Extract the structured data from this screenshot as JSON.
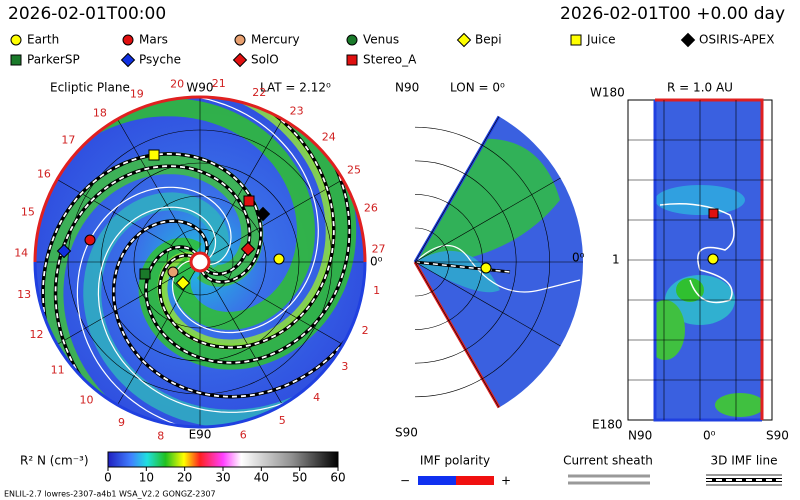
{
  "header": {
    "left_time": "2026-02-01T00:00",
    "right_time": "2026-02-01T00 +0.00 day"
  },
  "legend": [
    {
      "name": "Earth",
      "color": "#ffff00",
      "shape": "circle"
    },
    {
      "name": "Mars",
      "color": "#e01010",
      "shape": "circle"
    },
    {
      "name": "Mercury",
      "color": "#e8a070",
      "shape": "circle"
    },
    {
      "name": "Venus",
      "color": "#1a7a2a",
      "shape": "circle"
    },
    {
      "name": "Bepi",
      "color": "#ffff00",
      "shape": "diamond"
    },
    {
      "name": "Juice",
      "color": "#ffff00",
      "shape": "square"
    },
    {
      "name": "OSIRIS-APEX",
      "color": "#000000",
      "shape": "diamond"
    },
    {
      "name": "ParkerSP",
      "color": "#1a7a2a",
      "shape": "square"
    },
    {
      "name": "Psyche",
      "color": "#1030e0",
      "shape": "diamond"
    },
    {
      "name": "SolO",
      "color": "#e01010",
      "shape": "diamond"
    },
    {
      "name": "Stereo_A",
      "color": "#e01010",
      "shape": "square"
    }
  ],
  "ecliptic": {
    "title": "Ecliptic Plane",
    "lat": "LAT = 2.12⁰",
    "top": "W90",
    "bottom": "E90",
    "right": "0⁰",
    "carrington_ticks": [
      1,
      2,
      3,
      4,
      5,
      6,
      8,
      9,
      10,
      11,
      12,
      13,
      14,
      15,
      16,
      17,
      18,
      19,
      20,
      21,
      22,
      23,
      24,
      25,
      26,
      27
    ]
  },
  "meridional": {
    "top": "N90",
    "lon": "LON = 0⁰",
    "right": "0⁰",
    "bottom": "S90"
  },
  "radial": {
    "title": "R = 1.0 AU",
    "top": "W180",
    "bottom": "E180",
    "mid": "1",
    "left": "N90",
    "center": "0⁰",
    "right": "S90"
  },
  "colorbar": {
    "title": "R² N (cm⁻³)",
    "lim": [
      0,
      60
    ],
    "ticks": [
      0,
      10,
      20,
      30,
      40,
      50,
      60
    ]
  },
  "keys": {
    "imf_polarity": "IMF polarity",
    "minus": "−",
    "plus": "+",
    "current_sheath": "Current sheath",
    "imf_line": "3D IMF line"
  },
  "footer": "ENLIL-2.7 lowres-2307-a4b1 WSA_V2.2 GONGZ-2307"
}
